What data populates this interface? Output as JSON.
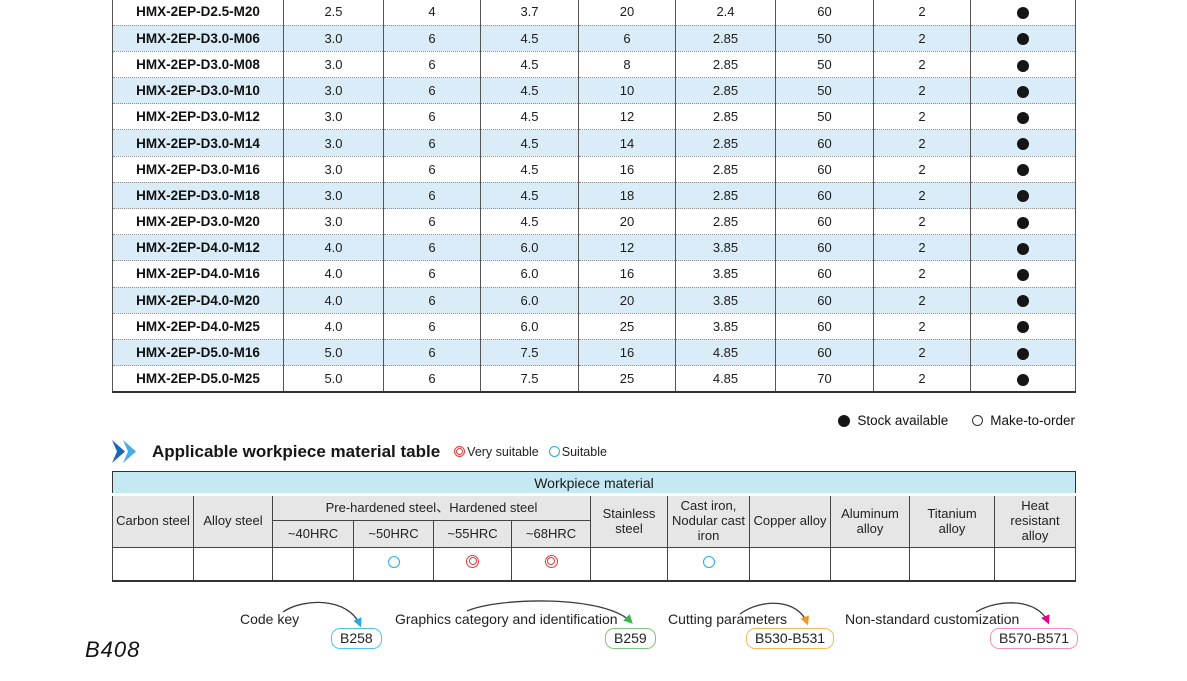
{
  "main_table": {
    "rows": [
      {
        "model": "HMX-2EP-D2.5-M20",
        "values": [
          "2.5",
          "4",
          "3.7",
          "20",
          "2.4",
          "60",
          "2"
        ],
        "stock": "available"
      },
      {
        "model": "HMX-2EP-D3.0-M06",
        "values": [
          "3.0",
          "6",
          "4.5",
          "6",
          "2.85",
          "50",
          "2"
        ],
        "stock": "available"
      },
      {
        "model": "HMX-2EP-D3.0-M08",
        "values": [
          "3.0",
          "6",
          "4.5",
          "8",
          "2.85",
          "50",
          "2"
        ],
        "stock": "available"
      },
      {
        "model": "HMX-2EP-D3.0-M10",
        "values": [
          "3.0",
          "6",
          "4.5",
          "10",
          "2.85",
          "50",
          "2"
        ],
        "stock": "available"
      },
      {
        "model": "HMX-2EP-D3.0-M12",
        "values": [
          "3.0",
          "6",
          "4.5",
          "12",
          "2.85",
          "50",
          "2"
        ],
        "stock": "available"
      },
      {
        "model": "HMX-2EP-D3.0-M14",
        "values": [
          "3.0",
          "6",
          "4.5",
          "14",
          "2.85",
          "60",
          "2"
        ],
        "stock": "available"
      },
      {
        "model": "HMX-2EP-D3.0-M16",
        "values": [
          "3.0",
          "6",
          "4.5",
          "16",
          "2.85",
          "60",
          "2"
        ],
        "stock": "available"
      },
      {
        "model": "HMX-2EP-D3.0-M18",
        "values": [
          "3.0",
          "6",
          "4.5",
          "18",
          "2.85",
          "60",
          "2"
        ],
        "stock": "available"
      },
      {
        "model": "HMX-2EP-D3.0-M20",
        "values": [
          "3.0",
          "6",
          "4.5",
          "20",
          "2.85",
          "60",
          "2"
        ],
        "stock": "available"
      },
      {
        "model": "HMX-2EP-D4.0-M12",
        "values": [
          "4.0",
          "6",
          "6.0",
          "12",
          "3.85",
          "60",
          "2"
        ],
        "stock": "available"
      },
      {
        "model": "HMX-2EP-D4.0-M16",
        "values": [
          "4.0",
          "6",
          "6.0",
          "16",
          "3.85",
          "60",
          "2"
        ],
        "stock": "available"
      },
      {
        "model": "HMX-2EP-D4.0-M20",
        "values": [
          "4.0",
          "6",
          "6.0",
          "20",
          "3.85",
          "60",
          "2"
        ],
        "stock": "available"
      },
      {
        "model": "HMX-2EP-D4.0-M25",
        "values": [
          "4.0",
          "6",
          "6.0",
          "25",
          "3.85",
          "60",
          "2"
        ],
        "stock": "available"
      },
      {
        "model": "HMX-2EP-D5.0-M16",
        "values": [
          "5.0",
          "6",
          "7.5",
          "16",
          "4.85",
          "60",
          "2"
        ],
        "stock": "available"
      },
      {
        "model": "HMX-2EP-D5.0-M25",
        "values": [
          "5.0",
          "6",
          "7.5",
          "25",
          "4.85",
          "70",
          "2"
        ],
        "stock": "available"
      }
    ],
    "stock_legend": {
      "available": "Stock available",
      "make_to_order": "Make-to-order"
    }
  },
  "section": {
    "title": "Applicable workpiece material table",
    "legend": {
      "very_suitable": "Very suitable",
      "suitable": "Suitable"
    }
  },
  "workpiece_table": {
    "title": "Workpiece material",
    "group_header": "Pre-hardened steel、Hardened steel",
    "columns": [
      "Carbon steel",
      "Alloy steel",
      "~40HRC",
      "~50HRC",
      "~55HRC",
      "~68HRC",
      "Stainless steel",
      "Cast iron, Nodular cast iron",
      "Copper alloy",
      "Aluminum alloy",
      "Titanium alloy",
      "Heat resistant alloy"
    ],
    "marks": [
      "",
      "",
      "",
      "suitable",
      "very",
      "very",
      "",
      "suitable",
      "",
      "",
      "",
      ""
    ]
  },
  "footer_links": [
    {
      "label": "Code key",
      "badge": "B258",
      "accent": "#4fc5ea"
    },
    {
      "label": "Graphics category and identification",
      "badge": "B259",
      "accent": "#7cc784"
    },
    {
      "label": "Cutting parameters",
      "badge": "B530-B531",
      "accent": "#f6b95f"
    },
    {
      "label": "Non-standard customization",
      "badge": "B570-B571",
      "accent": "#f292bc"
    }
  ],
  "arrow_colors": {
    "code_key": "#29abe2",
    "graphics": "#39b54a",
    "cutting": "#f7941d",
    "non_standard": "#ec008c"
  },
  "colors": {
    "alt_row": "#d9ecf8",
    "table_title_band": "#c5e9f3",
    "header_cell": "#e6e6e6",
    "very_suitable": "#e8383d",
    "suitable": "#29abe2"
  },
  "page_number": "B408"
}
